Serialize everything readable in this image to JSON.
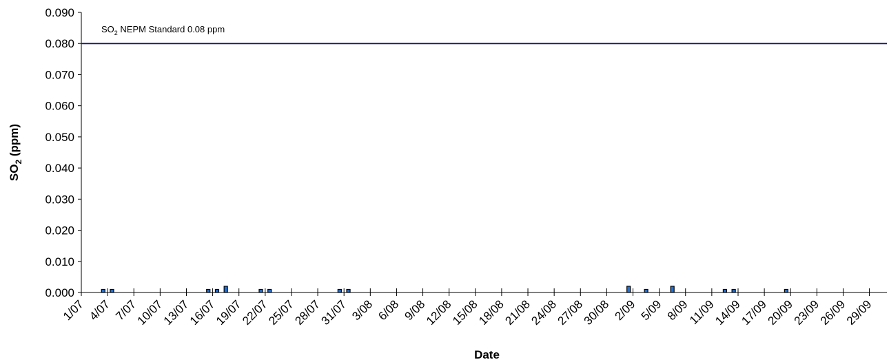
{
  "chart_data": {
    "type": "bar",
    "xlabel": "Date",
    "ylabel_main": "SO",
    "ylabel_sub": "2",
    "ylabel_tail": " (ppm)",
    "ylim": [
      0,
      0.09
    ],
    "yticks": [
      "0.000",
      "0.010",
      "0.020",
      "0.030",
      "0.040",
      "0.050",
      "0.060",
      "0.070",
      "0.080",
      "0.090"
    ],
    "x_tick_labels": [
      "1/07",
      "4/07",
      "7/07",
      "10/07",
      "13/07",
      "16/07",
      "19/07",
      "22/07",
      "25/07",
      "28/07",
      "31/07",
      "3/08",
      "6/08",
      "9/08",
      "12/08",
      "15/08",
      "18/08",
      "21/08",
      "24/08",
      "27/08",
      "30/08",
      "2/09",
      "5/09",
      "8/09",
      "11/09",
      "14/09",
      "17/09",
      "20/09",
      "23/09",
      "26/09",
      "29/09"
    ],
    "start_label": "1/07",
    "num_days": 92,
    "bars": [
      {
        "date": "3/07",
        "value": 0.001
      },
      {
        "date": "4/07",
        "value": 0.001
      },
      {
        "date": "15/07",
        "value": 0.001
      },
      {
        "date": "16/07",
        "value": 0.001
      },
      {
        "date": "17/07",
        "value": 0.002
      },
      {
        "date": "21/07",
        "value": 0.001
      },
      {
        "date": "22/07",
        "value": 0.001
      },
      {
        "date": "30/07",
        "value": 0.001
      },
      {
        "date": "31/07",
        "value": 0.001
      },
      {
        "date": "1/09",
        "value": 0.002
      },
      {
        "date": "3/09",
        "value": 0.001
      },
      {
        "date": "6/09",
        "value": 0.002
      },
      {
        "date": "12/09",
        "value": 0.001
      },
      {
        "date": "13/09",
        "value": 0.001
      },
      {
        "date": "19/09",
        "value": 0.001
      }
    ],
    "reference_line": {
      "value": 0.08,
      "label_main": "SO",
      "label_sub": "2",
      "label_tail": " NEPM  Standard 0.08 ppm"
    },
    "colors": {
      "bar_fill": "#1f6fd6",
      "bar_stroke": "#000000",
      "reference_line": "#1a1a7e",
      "axis": "#000000"
    },
    "grid": false,
    "legend": "none"
  }
}
